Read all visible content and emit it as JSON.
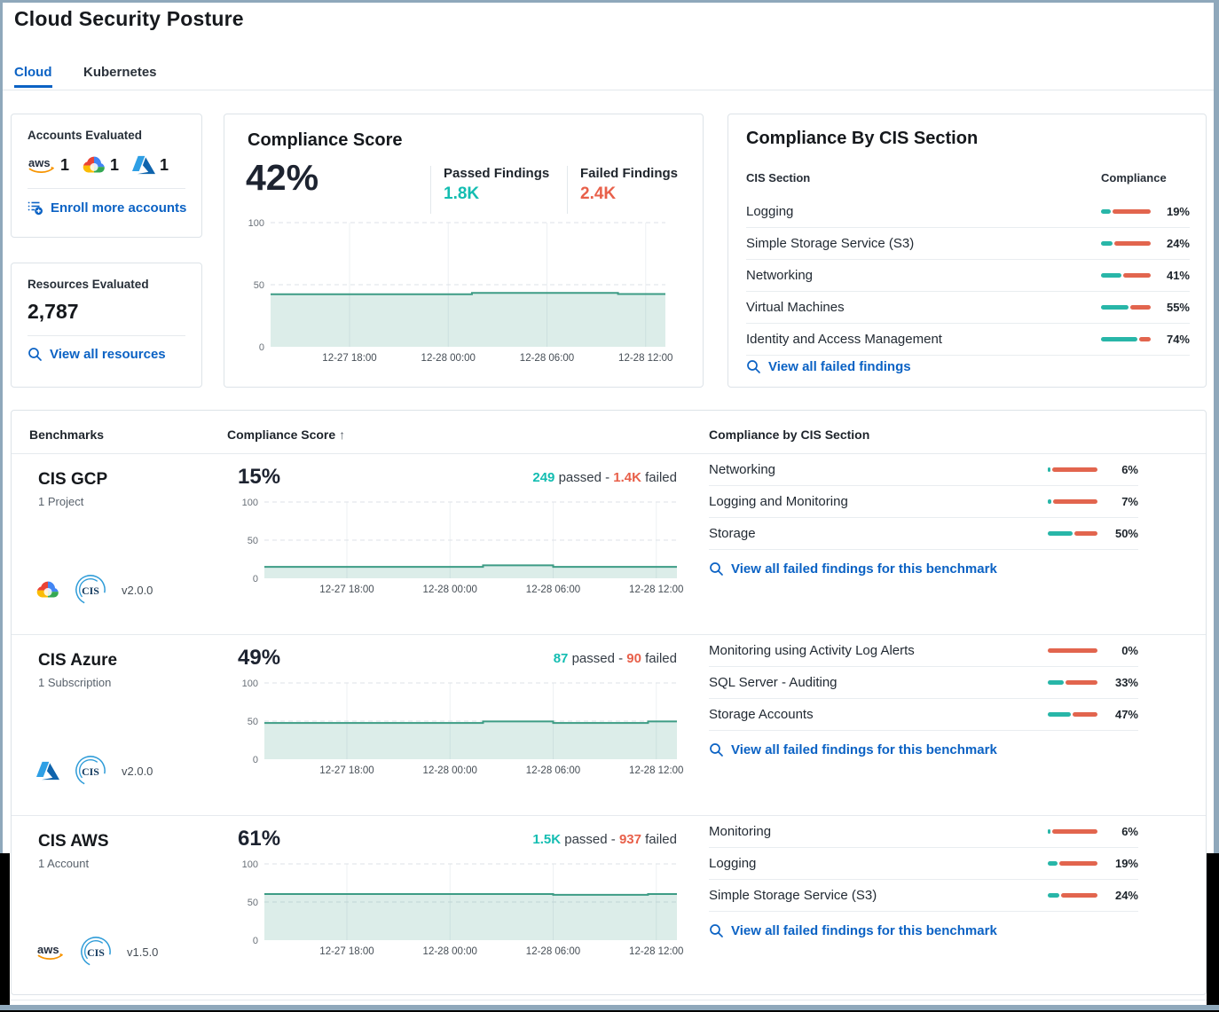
{
  "page": {
    "title": "Cloud Security Posture"
  },
  "tabs": [
    {
      "label": "Cloud",
      "active": true
    },
    {
      "label": "Kubernetes",
      "active": false
    }
  ],
  "colors": {
    "accent_blue": "#0b62c4",
    "passed_teal": "#13bdb1",
    "failed_red": "#e8604a",
    "bar_teal": "#28b6a8",
    "bar_red": "#e2654e",
    "chart_line": "#3d9c85",
    "frame_bluegray": "#8fa8bb"
  },
  "icons": [
    "aws-icon",
    "gcp-icon",
    "azure-icon",
    "cis-logo-icon",
    "search-icon",
    "enroll-list-plus-icon",
    "sort-up-icon"
  ],
  "accounts_card": {
    "title": "Accounts Evaluated",
    "providers": [
      {
        "name": "aws",
        "count": "1"
      },
      {
        "name": "gcp",
        "count": "1"
      },
      {
        "name": "azure",
        "count": "1"
      }
    ],
    "link": "Enroll more accounts"
  },
  "resources_card": {
    "title": "Resources Evaluated",
    "value": "2,787",
    "link": "View all resources"
  },
  "score_card": {
    "title": "Compliance Score",
    "score": "42%",
    "passed_label": "Passed Findings",
    "passed_value": "1.8K",
    "failed_label": "Failed Findings",
    "failed_value": "2.4K"
  },
  "cis_card": {
    "title": "Compliance By CIS Section",
    "col_section": "CIS Section",
    "col_compliance": "Compliance",
    "rows": [
      {
        "label": "Logging",
        "pct": 19,
        "pct_label": "19%"
      },
      {
        "label": "Simple Storage Service (S3)",
        "pct": 24,
        "pct_label": "24%"
      },
      {
        "label": "Networking",
        "pct": 41,
        "pct_label": "41%"
      },
      {
        "label": "Virtual Machines",
        "pct": 55,
        "pct_label": "55%"
      },
      {
        "label": "Identity and Access Management",
        "pct": 74,
        "pct_label": "74%"
      }
    ],
    "link": "View all failed findings"
  },
  "benchmarks_table": {
    "col_benchmarks": "Benchmarks",
    "col_score": "Compliance Score",
    "sort_arrow": "↑",
    "col_cis": "Compliance by CIS Section",
    "rows": [
      {
        "name": "CIS GCP",
        "scope": "1 Project",
        "provider": "gcp",
        "version": "v2.0.0",
        "score": "15%",
        "passed": "249",
        "mid": " passed - ",
        "failed": "1.4K",
        "tail": " failed",
        "sections": [
          {
            "label": "Networking",
            "pct": 6,
            "pct_label": "6%"
          },
          {
            "label": "Logging and Monitoring",
            "pct": 7,
            "pct_label": "7%"
          },
          {
            "label": "Storage",
            "pct": 50,
            "pct_label": "50%"
          }
        ],
        "link": "View all failed findings for this benchmark"
      },
      {
        "name": "CIS Azure",
        "scope": "1 Subscription",
        "provider": "azure",
        "version": "v2.0.0",
        "score": "49%",
        "passed": "87",
        "mid": " passed - ",
        "failed": "90",
        "tail": " failed",
        "sections": [
          {
            "label": "Monitoring using Activity Log Alerts",
            "pct": 0,
            "pct_label": "0%"
          },
          {
            "label": "SQL Server - Auditing",
            "pct": 33,
            "pct_label": "33%"
          },
          {
            "label": "Storage Accounts",
            "pct": 47,
            "pct_label": "47%"
          }
        ],
        "link": "View all failed findings for this benchmark"
      },
      {
        "name": "CIS AWS",
        "scope": "1 Account",
        "provider": "aws",
        "version": "v1.5.0",
        "score": "61%",
        "passed": "1.5K",
        "mid": " passed - ",
        "failed": "937",
        "tail": " failed",
        "sections": [
          {
            "label": "Monitoring",
            "pct": 6,
            "pct_label": "6%"
          },
          {
            "label": "Logging",
            "pct": 19,
            "pct_label": "19%"
          },
          {
            "label": "Simple Storage Service (S3)",
            "pct": 24,
            "pct_label": "24%"
          }
        ],
        "link": "View all failed findings for this benchmark"
      }
    ]
  },
  "chart_data": [
    {
      "type": "area",
      "title": "Overall compliance score trend",
      "xlabel": "",
      "ylabel": "",
      "ylim": [
        0,
        100
      ],
      "yticks": [
        100,
        50,
        0
      ],
      "grid": "dashed-horizontal",
      "xticks": [
        {
          "pos": 0.2,
          "label": "12-27 18:00"
        },
        {
          "pos": 0.45,
          "label": "12-28 00:00"
        },
        {
          "pos": 0.7,
          "label": "12-28 06:00"
        },
        {
          "pos": 0.95,
          "label": "12-28 12:00"
        }
      ],
      "series": [
        {
          "name": "compliance_score_pct",
          "points": [
            [
              0,
              42.3
            ],
            [
              0.51,
              42.3
            ],
            [
              0.51,
              43.4
            ],
            [
              0.88,
              43.4
            ],
            [
              0.88,
              42.5
            ],
            [
              1,
              42.5
            ]
          ]
        }
      ]
    },
    {
      "type": "area",
      "title": "CIS GCP compliance score trend",
      "xlabel": "",
      "ylabel": "",
      "ylim": [
        0,
        100
      ],
      "yticks": [
        100,
        50,
        0
      ],
      "grid": "dashed-horizontal",
      "xticks": [
        {
          "pos": 0.2,
          "label": "12-27 18:00"
        },
        {
          "pos": 0.45,
          "label": "12-28 00:00"
        },
        {
          "pos": 0.7,
          "label": "12-28 06:00"
        },
        {
          "pos": 0.95,
          "label": "12-28 12:00"
        }
      ],
      "series": [
        {
          "name": "compliance_score_pct",
          "points": [
            [
              0,
              15
            ],
            [
              0.53,
              15
            ],
            [
              0.53,
              17
            ],
            [
              0.7,
              17
            ],
            [
              0.7,
              15
            ],
            [
              1,
              15
            ]
          ]
        }
      ]
    },
    {
      "type": "area",
      "title": "CIS Azure compliance score trend",
      "xlabel": "",
      "ylabel": "",
      "ylim": [
        0,
        100
      ],
      "yticks": [
        100,
        50,
        0
      ],
      "grid": "dashed-horizontal",
      "xticks": [
        {
          "pos": 0.2,
          "label": "12-27 18:00"
        },
        {
          "pos": 0.45,
          "label": "12-28 00:00"
        },
        {
          "pos": 0.7,
          "label": "12-28 06:00"
        },
        {
          "pos": 0.95,
          "label": "12-28 12:00"
        }
      ],
      "series": [
        {
          "name": "compliance_score_pct",
          "points": [
            [
              0,
              47.5
            ],
            [
              0.53,
              47.5
            ],
            [
              0.53,
              49.5
            ],
            [
              0.7,
              49.5
            ],
            [
              0.7,
              47.5
            ],
            [
              0.93,
              47.5
            ],
            [
              0.93,
              49.5
            ],
            [
              1,
              49.5
            ]
          ]
        }
      ]
    },
    {
      "type": "area",
      "title": "CIS AWS compliance score trend",
      "xlabel": "",
      "ylabel": "",
      "ylim": [
        0,
        100
      ],
      "yticks": [
        100,
        50,
        0
      ],
      "grid": "dashed-horizontal",
      "xticks": [
        {
          "pos": 0.2,
          "label": "12-27 18:00"
        },
        {
          "pos": 0.45,
          "label": "12-28 00:00"
        },
        {
          "pos": 0.7,
          "label": "12-28 06:00"
        },
        {
          "pos": 0.95,
          "label": "12-28 12:00"
        }
      ],
      "series": [
        {
          "name": "compliance_score_pct",
          "points": [
            [
              0,
              60.5
            ],
            [
              0.7,
              60.5
            ],
            [
              0.7,
              59.5
            ],
            [
              0.93,
              59.5
            ],
            [
              0.93,
              60.5
            ],
            [
              1,
              60.5
            ]
          ]
        }
      ]
    }
  ]
}
